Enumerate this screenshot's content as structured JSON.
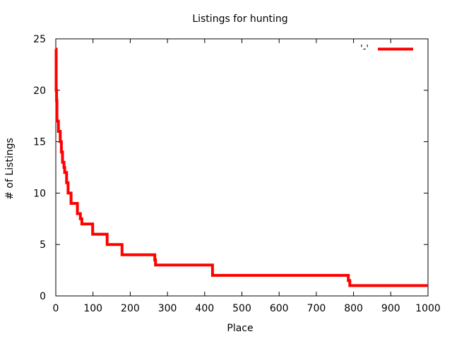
{
  "chart_data": {
    "type": "line",
    "title": "Listings for hunting",
    "xlabel": "Place",
    "ylabel": "# of Listings",
    "xlim": [
      0,
      1000
    ],
    "ylim": [
      0,
      25
    ],
    "x_ticks": [
      0,
      100,
      200,
      300,
      400,
      500,
      600,
      700,
      800,
      900,
      1000
    ],
    "y_ticks": [
      0,
      5,
      10,
      15,
      20,
      25
    ],
    "grid": false,
    "legend_position": "top-right",
    "series": [
      {
        "name": "'-'",
        "color": "#ff0000",
        "step": true,
        "points": [
          [
            0,
            24
          ],
          [
            1,
            20
          ],
          [
            2,
            19
          ],
          [
            3,
            17
          ],
          [
            6,
            17
          ],
          [
            7,
            16
          ],
          [
            11,
            16
          ],
          [
            12,
            15
          ],
          [
            14,
            15
          ],
          [
            15,
            14
          ],
          [
            17,
            14
          ],
          [
            18,
            13
          ],
          [
            21,
            13
          ],
          [
            22,
            12.5
          ],
          [
            24,
            12
          ],
          [
            28,
            12
          ],
          [
            29,
            11
          ],
          [
            32,
            11
          ],
          [
            33,
            10
          ],
          [
            40,
            10
          ],
          [
            41,
            9
          ],
          [
            57,
            9
          ],
          [
            58,
            8
          ],
          [
            65,
            8
          ],
          [
            66,
            7.5
          ],
          [
            70,
            7
          ],
          [
            98,
            7
          ],
          [
            99,
            6
          ],
          [
            137,
            6
          ],
          [
            138,
            5
          ],
          [
            177,
            5
          ],
          [
            178,
            4
          ],
          [
            265,
            4
          ],
          [
            266,
            3.5
          ],
          [
            268,
            3
          ],
          [
            420,
            3
          ],
          [
            421,
            2
          ],
          [
            785,
            2
          ],
          [
            786,
            1.5
          ],
          [
            790,
            1
          ],
          [
            1000,
            1
          ]
        ]
      }
    ]
  }
}
